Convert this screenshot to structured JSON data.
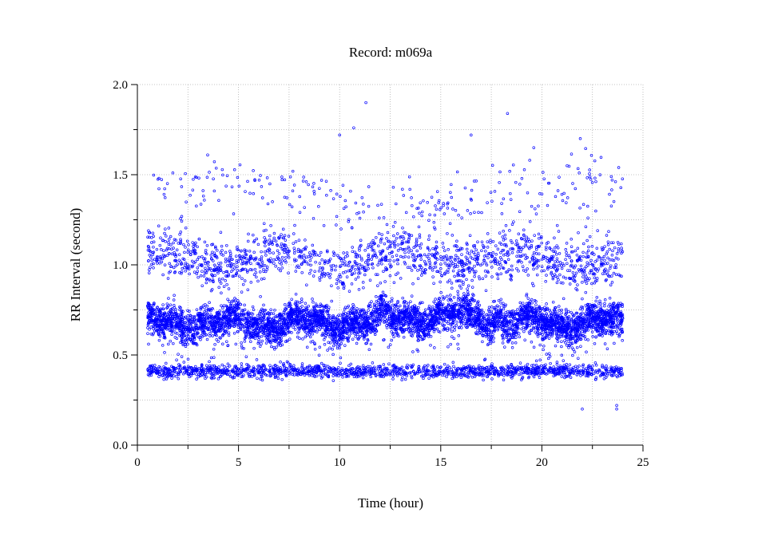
{
  "chart_data": {
    "type": "scatter",
    "title": "Record:  m069a",
    "xlabel": "Time (hour)",
    "ylabel": "RR Interval (second)",
    "xlim": [
      0,
      25
    ],
    "ylim": [
      0.0,
      2.0
    ],
    "x_ticks": [
      "0",
      "5",
      "10",
      "15",
      "20",
      "25"
    ],
    "y_ticks": [
      "0.0",
      "0.5",
      "1.0",
      "1.5",
      "2.0"
    ],
    "grid": true,
    "legend": "none",
    "marker": "hollow-circle",
    "point_color": "#0000ff",
    "x_range_hours": [
      0.5,
      24.0
    ],
    "bands": [
      {
        "center": 0.68,
        "spread": 0.045,
        "density": "very-high"
      },
      {
        "center": 1.03,
        "spread": 0.07,
        "density": "medium"
      },
      {
        "center": 0.41,
        "spread": 0.018,
        "density": "medium"
      },
      {
        "center": 1.38,
        "spread": 0.08,
        "density": "sparse"
      }
    ],
    "outliers": [
      {
        "x": 11.3,
        "y": 1.9
      },
      {
        "x": 18.3,
        "y": 1.84
      },
      {
        "x": 10.7,
        "y": 1.76
      },
      {
        "x": 10.0,
        "y": 1.72
      },
      {
        "x": 16.5,
        "y": 1.72
      },
      {
        "x": 21.9,
        "y": 1.7
      },
      {
        "x": 19.6,
        "y": 1.65
      },
      {
        "x": 19.4,
        "y": 1.58
      },
      {
        "x": 23.8,
        "y": 1.54
      },
      {
        "x": 22.0,
        "y": 0.2
      },
      {
        "x": 23.7,
        "y": 0.2
      },
      {
        "x": 23.7,
        "y": 0.22
      }
    ]
  }
}
